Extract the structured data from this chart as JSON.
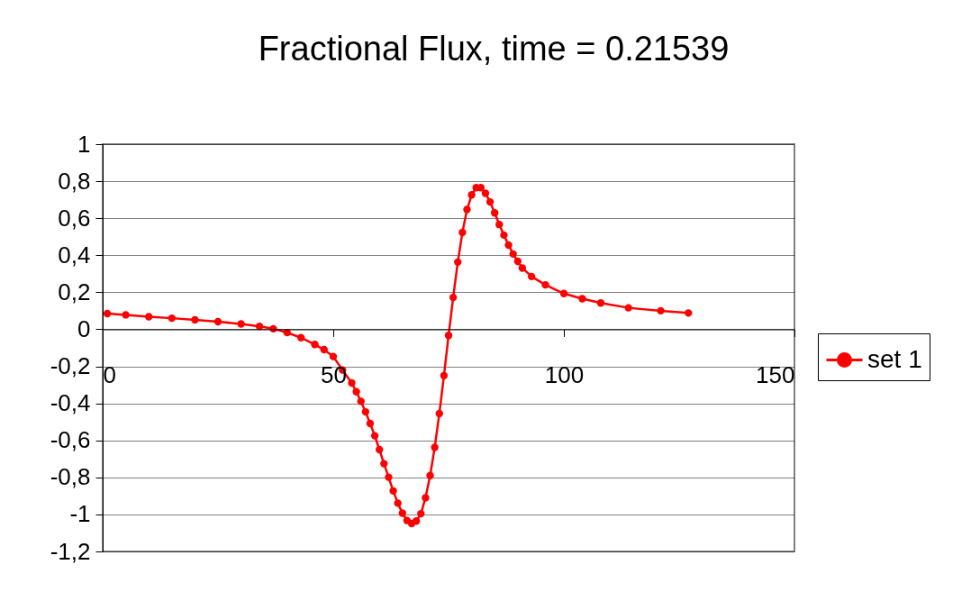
{
  "chart_data": {
    "type": "line",
    "title": "Fractional Flux,  time = 0.21539",
    "x": [
      1,
      5,
      10,
      15,
      20,
      25,
      30,
      34,
      37,
      40,
      43,
      46,
      48,
      50,
      52,
      54,
      55,
      56,
      57,
      58,
      59,
      60,
      61,
      62,
      63,
      64,
      65,
      66,
      67,
      68,
      69,
      70,
      71,
      72,
      73,
      74,
      75,
      76,
      77,
      78,
      79,
      80,
      81,
      82,
      83,
      84,
      85,
      86,
      87,
      88,
      89,
      90,
      91,
      93,
      96,
      100,
      104,
      108,
      114,
      121,
      127
    ],
    "series": [
      {
        "name": "set 1",
        "color": "#ff0000",
        "values": [
          0.085,
          0.078,
          0.068,
          0.06,
          0.051,
          0.041,
          0.029,
          0.016,
          0.003,
          -0.018,
          -0.045,
          -0.082,
          -0.11,
          -0.147,
          -0.22,
          -0.29,
          -0.337,
          -0.389,
          -0.446,
          -0.509,
          -0.575,
          -0.65,
          -0.726,
          -0.799,
          -0.873,
          -0.939,
          -0.993,
          -1.033,
          -1.049,
          -1.036,
          -0.996,
          -0.91,
          -0.79,
          -0.638,
          -0.455,
          -0.25,
          -0.033,
          0.172,
          0.363,
          0.523,
          0.647,
          0.726,
          0.765,
          0.765,
          0.735,
          0.688,
          0.629,
          0.566,
          0.509,
          0.455,
          0.407,
          0.367,
          0.331,
          0.285,
          0.24,
          0.193,
          0.165,
          0.142,
          0.116,
          0.1,
          0.088
        ]
      }
    ],
    "xlim": [
      0,
      150
    ],
    "xticks": [
      0,
      50,
      100,
      150
    ],
    "ylim": [
      -1.2,
      1
    ],
    "yticks": [
      {
        "value": -1.2,
        "label": "-1,2"
      },
      {
        "value": -1,
        "label": "-1"
      },
      {
        "value": -0.8,
        "label": "-0,8"
      },
      {
        "value": -0.6,
        "label": "-0,6"
      },
      {
        "value": -0.4,
        "label": "-0,4"
      },
      {
        "value": -0.2,
        "label": "-0,2"
      },
      {
        "value": 0,
        "label": "0"
      },
      {
        "value": 0.2,
        "label": "0,2"
      },
      {
        "value": 0.4,
        "label": "0,4"
      },
      {
        "value": 0.6,
        "label": "0,6"
      },
      {
        "value": 0.8,
        "label": "0,8"
      },
      {
        "value": 1,
        "label": "1"
      }
    ],
    "grid": "y",
    "legend": "right",
    "marker": "circle",
    "line_style": "solid"
  }
}
